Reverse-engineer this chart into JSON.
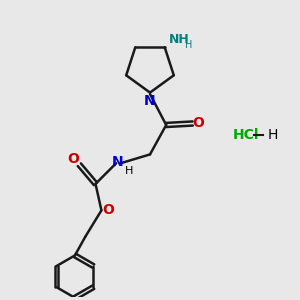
{
  "background_color": "#e8e8e8",
  "bond_color": "#1a1a1a",
  "N_color": "#0000cc",
  "O_color": "#cc0000",
  "NH2_color": "#008080",
  "Cl_color": "#00aa00",
  "line_width": 1.8,
  "figsize": [
    3.0,
    3.0
  ],
  "dpi": 100,
  "xlim": [
    0,
    10
  ],
  "ylim": [
    0,
    10
  ]
}
